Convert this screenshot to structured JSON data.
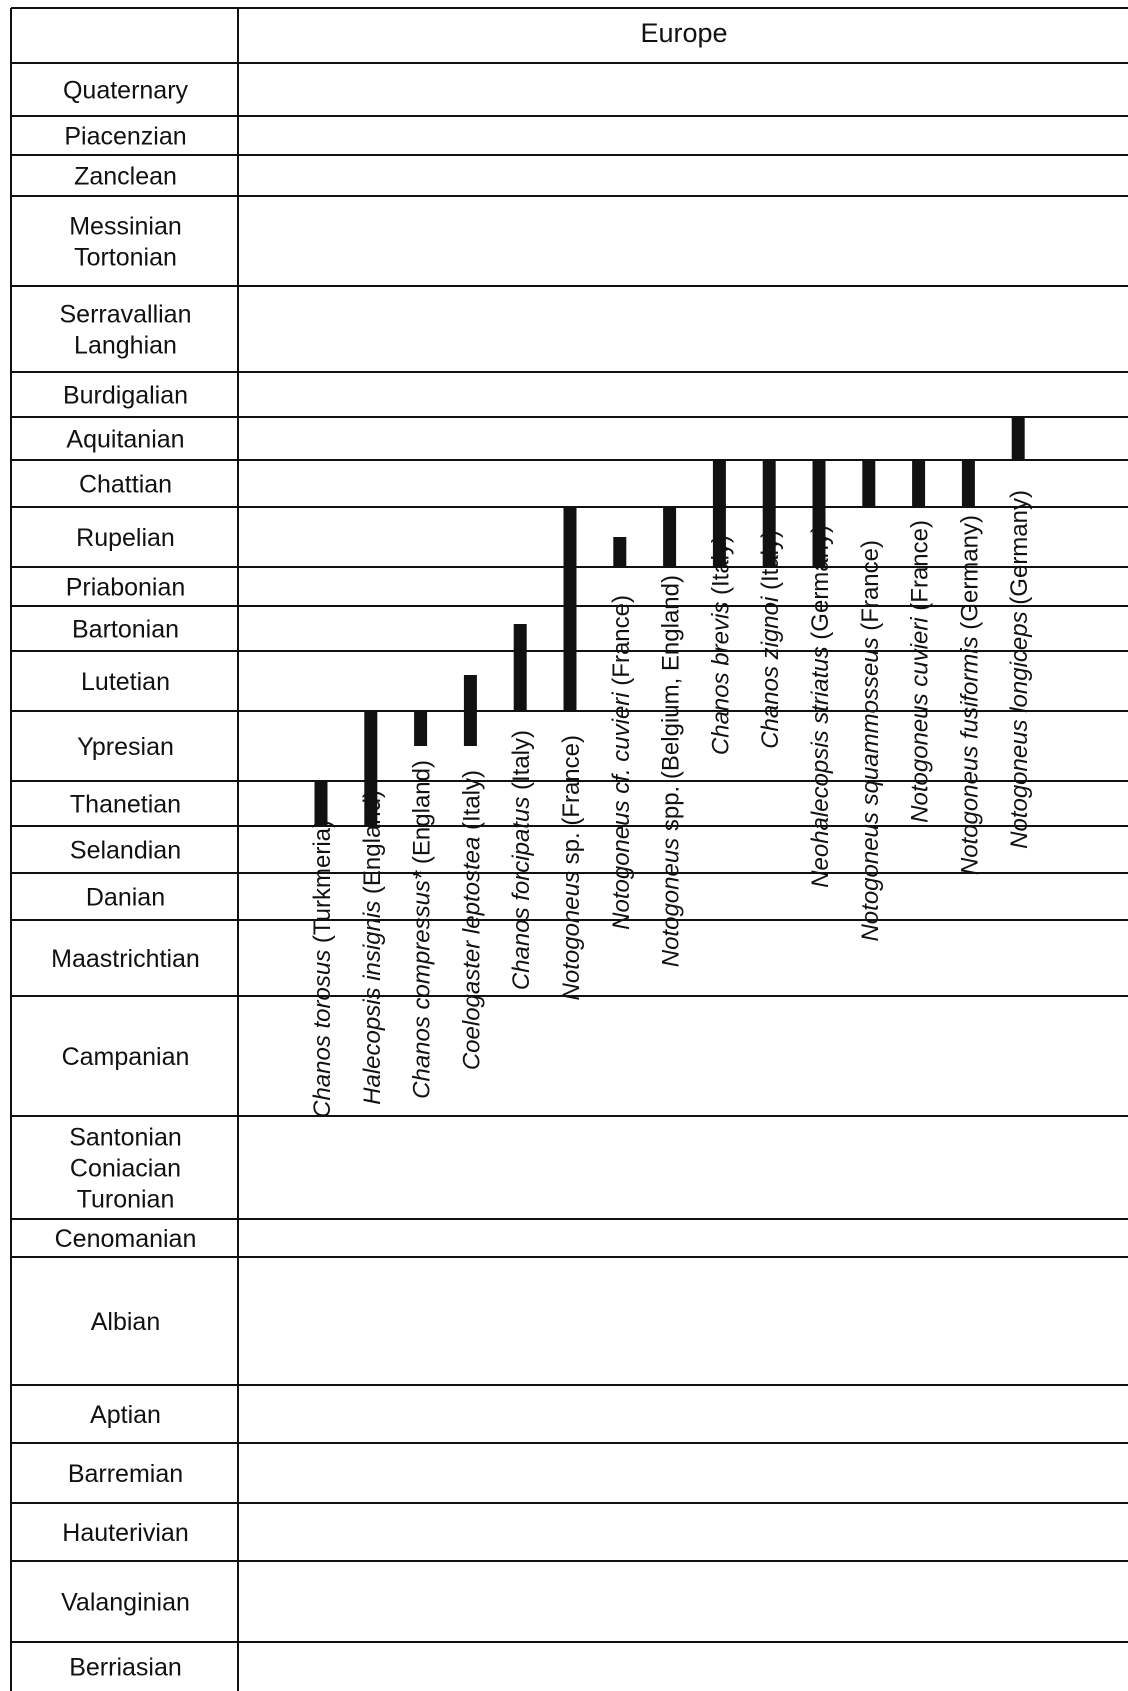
{
  "region": "Europe",
  "colors": {
    "line": "#111111",
    "bar": "#111111",
    "background": "#ffffff"
  },
  "stages": [
    {
      "label": [
        "Quaternary"
      ]
    },
    {
      "label": [
        "Piacenzian"
      ]
    },
    {
      "label": [
        "Zanclean"
      ]
    },
    {
      "label": [
        "Messinian",
        "Tortonian"
      ]
    },
    {
      "label": [
        "Serravallian",
        "Langhian"
      ]
    },
    {
      "label": [
        "Burdigalian"
      ]
    },
    {
      "label": [
        "Aquitanian"
      ]
    },
    {
      "label": [
        "Chattian"
      ]
    },
    {
      "label": [
        "Rupelian"
      ]
    },
    {
      "label": [
        "Priabonian"
      ]
    },
    {
      "label": [
        "Bartonian"
      ]
    },
    {
      "label": [
        "Lutetian"
      ]
    },
    {
      "label": [
        "Ypresian"
      ]
    },
    {
      "label": [
        "Thanetian"
      ]
    },
    {
      "label": [
        "Selandian"
      ]
    },
    {
      "label": [
        "Danian"
      ]
    },
    {
      "label": [
        "Maastrichtian"
      ]
    },
    {
      "label": [
        "Campanian"
      ]
    },
    {
      "label": [
        "Santonian",
        "Coniacian",
        "Turonian"
      ]
    },
    {
      "label": [
        "Cenomanian"
      ]
    },
    {
      "label": [
        "Albian"
      ]
    },
    {
      "label": [
        "Aptian"
      ]
    },
    {
      "label": [
        "Barremian"
      ]
    },
    {
      "label": [
        "Hauterivian"
      ]
    },
    {
      "label": [
        "Valanginian"
      ]
    },
    {
      "label": [
        "Berriasian"
      ]
    }
  ],
  "taxa": [
    {
      "genus": "Chanos torosus",
      "rest": " (Turkmeria)",
      "range": [
        "Thanetian",
        "Thanetian"
      ],
      "partial_top": 0.0,
      "partial_bottom": 0.0
    },
    {
      "genus": "Halecopsis insignis",
      "rest": " (England)",
      "range": [
        "Ypresian",
        "Thanetian"
      ],
      "partial_top": 0.0,
      "partial_bottom": 0.0
    },
    {
      "genus": "Chanos compressus*",
      "rest": " (England)",
      "range": [
        "Ypresian",
        "Ypresian"
      ],
      "partial_top": 0.0,
      "partial_bottom": 0.5
    },
    {
      "genus": "Coelogaster leptostea",
      "rest": " (Italy)",
      "range": [
        "Lutetian",
        "Ypresian"
      ],
      "partial_top": 0.4,
      "partial_bottom": 0.5
    },
    {
      "genus": "Chanos forcipatus",
      "rest": " (Italy)",
      "range": [
        "Bartonian",
        "Lutetian"
      ],
      "partial_top": 0.4,
      "partial_bottom": 0.0
    },
    {
      "genus": "Notogoneus",
      "rest": " sp. (France)",
      "range": [
        "Rupelian",
        "Lutetian"
      ],
      "partial_top": 0.0,
      "partial_bottom": 0.0
    },
    {
      "genus": "Notogoneus cf. cuvieri",
      "rest": " (France)",
      "range": [
        "Rupelian",
        "Rupelian"
      ],
      "partial_top": 0.5,
      "partial_bottom": 0.0
    },
    {
      "genus": "Notogoneus",
      "rest": " spp. (Belgium, England)",
      "range": [
        "Rupelian",
        "Rupelian"
      ],
      "partial_top": 0.0,
      "partial_bottom": 0.0
    },
    {
      "genus": "Chanos brevis",
      "rest": " (Italy)",
      "range": [
        "Chattian",
        "Rupelian"
      ],
      "partial_top": 0.0,
      "partial_bottom": 0.0
    },
    {
      "genus": "Chanos zignoi",
      "rest": " (Italy)",
      "range": [
        "Chattian",
        "Rupelian"
      ],
      "partial_top": 0.0,
      "partial_bottom": 0.0
    },
    {
      "genus": "Neohalecopsis striatus",
      "rest": " (Germany)",
      "range": [
        "Chattian",
        "Rupelian"
      ],
      "partial_top": 0.0,
      "partial_bottom": 0.0
    },
    {
      "genus": "Notogoneus squammosseus",
      "rest": " (France)",
      "range": [
        "Chattian",
        "Chattian"
      ],
      "partial_top": 0.0,
      "partial_bottom": 0.0
    },
    {
      "genus": "Notogoneus cuvieri",
      "rest": " (France)",
      "range": [
        "Chattian",
        "Chattian"
      ],
      "partial_top": 0.0,
      "partial_bottom": 0.0
    },
    {
      "genus": "Notogoneus fusiformis",
      "rest": " (Germany)",
      "range": [
        "Chattian",
        "Chattian"
      ],
      "partial_top": 0.0,
      "partial_bottom": 0.0
    },
    {
      "genus": "Notogoneus longiceps",
      "rest": " (Germany)",
      "range": [
        "Aquitanian",
        "Aquitanian"
      ],
      "partial_top": 0.0,
      "partial_bottom": 0.0
    }
  ]
}
